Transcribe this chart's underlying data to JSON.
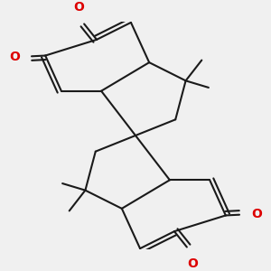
{
  "background_color": "#f0f0f0",
  "bond_color": "#1a1a1a",
  "oxygen_color": "#dd0000",
  "bond_width": 1.5,
  "dbo": 0.018,
  "figsize": [
    3.0,
    3.0
  ],
  "dpi": 100,
  "xlim": [
    0.0,
    1.0
  ],
  "ylim": [
    0.0,
    1.0
  ],
  "font_size": 10
}
